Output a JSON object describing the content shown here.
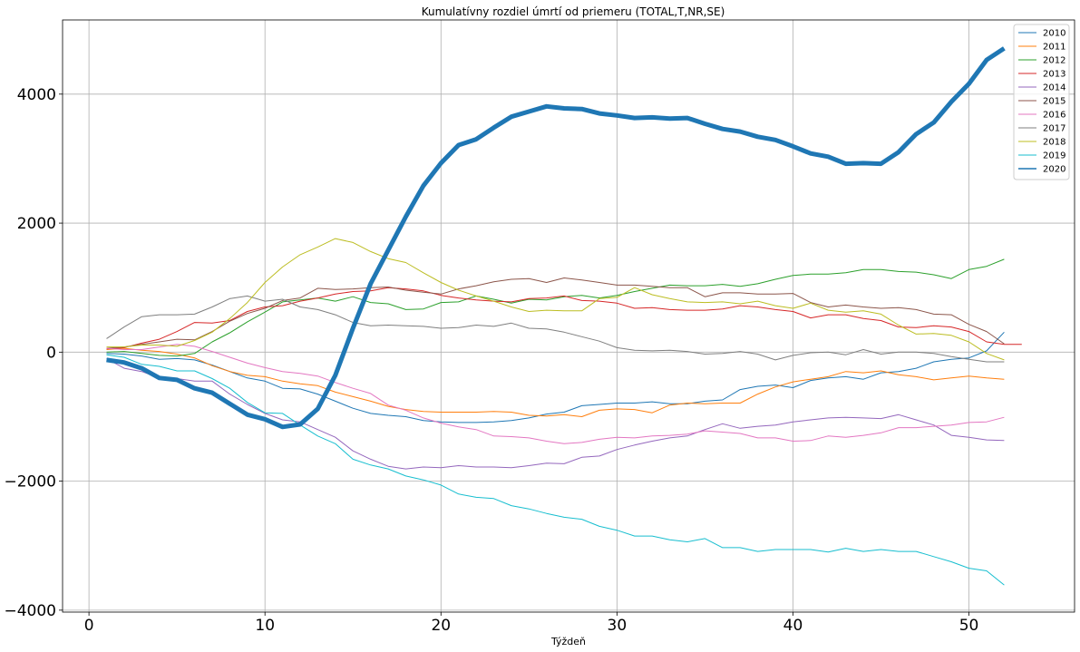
{
  "chart_data": {
    "type": "line",
    "title": "Kumulatívny rozdiel úmrtí od priemeru (TOTAL,T,NR,SE)",
    "xlabel": "Týždeň",
    "ylabel": "",
    "xlim": [
      -1.5,
      56
    ],
    "ylim": [
      -4030,
      5150
    ],
    "xticks": [
      0,
      10,
      20,
      30,
      40,
      50
    ],
    "yticks": [
      -4000,
      -2000,
      0,
      2000,
      4000
    ],
    "xtick_labels": [
      "0",
      "10",
      "20",
      "30",
      "40",
      "50"
    ],
    "ytick_labels": [
      "−4000",
      "−2000",
      "0",
      "2000",
      "4000"
    ],
    "grid": true,
    "legend_position": "top-right",
    "series": [
      {
        "name": "2010",
        "color": "#1f77b4",
        "width": 1,
        "x": [
          1,
          2,
          3,
          4,
          5,
          6,
          7,
          8,
          9,
          10,
          11,
          12,
          13,
          14,
          15,
          16,
          17,
          18,
          19,
          20,
          21,
          22,
          23,
          24,
          25,
          26,
          27,
          28,
          29,
          30,
          31,
          32,
          33,
          34,
          35,
          36,
          37,
          38,
          39,
          40,
          41,
          42,
          43,
          44,
          45,
          46,
          47,
          48,
          49,
          50,
          51,
          52
        ],
        "y": [
          -20,
          -30,
          -60,
          -110,
          -100,
          -120,
          -200,
          -300,
          -400,
          -450,
          -560,
          -570,
          -650,
          -760,
          -870,
          -950,
          -980,
          -1000,
          -1060,
          -1080,
          -1090,
          -1090,
          -1080,
          -1060,
          -1020,
          -960,
          -930,
          -830,
          -810,
          -790,
          -790,
          -770,
          -800,
          -800,
          -760,
          -740,
          -580,
          -530,
          -510,
          -550,
          -440,
          -400,
          -380,
          -420,
          -320,
          -300,
          -250,
          -150,
          -110,
          -90,
          20,
          310
        ]
      },
      {
        "name": "2011",
        "color": "#ff7f0e",
        "width": 1,
        "x": [
          1,
          2,
          3,
          4,
          5,
          6,
          7,
          8,
          9,
          10,
          11,
          12,
          13,
          14,
          15,
          16,
          17,
          18,
          19,
          20,
          21,
          22,
          23,
          24,
          25,
          26,
          27,
          28,
          29,
          30,
          31,
          32,
          33,
          34,
          35,
          36,
          37,
          38,
          39,
          40,
          41,
          42,
          43,
          44,
          45,
          46,
          47,
          48,
          49,
          50,
          51,
          52
        ],
        "y": [
          40,
          60,
          30,
          10,
          -30,
          -90,
          -210,
          -300,
          -360,
          -380,
          -450,
          -490,
          -520,
          -620,
          -690,
          -760,
          -840,
          -890,
          -920,
          -930,
          -930,
          -930,
          -920,
          -930,
          -980,
          -990,
          -970,
          -1000,
          -900,
          -880,
          -890,
          -940,
          -820,
          -790,
          -800,
          -790,
          -790,
          -650,
          -540,
          -460,
          -420,
          -380,
          -300,
          -320,
          -290,
          -350,
          -380,
          -430,
          -400,
          -370,
          -400,
          -420
        ]
      },
      {
        "name": "2012",
        "color": "#2ca02c",
        "width": 1,
        "x": [
          1,
          2,
          3,
          4,
          5,
          6,
          7,
          8,
          9,
          10,
          11,
          12,
          13,
          14,
          15,
          16,
          17,
          18,
          19,
          20,
          21,
          22,
          23,
          24,
          25,
          26,
          27,
          28,
          29,
          30,
          31,
          32,
          33,
          34,
          35,
          36,
          37,
          38,
          39,
          40,
          41,
          42,
          43,
          44,
          45,
          46,
          47,
          48,
          49,
          50,
          51,
          52
        ],
        "y": [
          0,
          10,
          -20,
          -50,
          -60,
          -20,
          160,
          300,
          470,
          620,
          780,
          810,
          840,
          790,
          860,
          770,
          750,
          660,
          670,
          770,
          780,
          870,
          820,
          760,
          820,
          810,
          860,
          880,
          840,
          880,
          940,
          990,
          1040,
          1030,
          1030,
          1050,
          1020,
          1060,
          1130,
          1190,
          1210,
          1210,
          1230,
          1280,
          1280,
          1250,
          1240,
          1200,
          1140,
          1280,
          1330,
          1440
        ]
      },
      {
        "name": "2013",
        "color": "#d62728",
        "width": 1,
        "x": [
          1,
          2,
          3,
          4,
          5,
          6,
          7,
          8,
          9,
          10,
          11,
          12,
          13,
          14,
          15,
          16,
          17,
          18,
          19,
          20,
          21,
          22,
          23,
          24,
          25,
          26,
          27,
          28,
          29,
          30,
          31,
          32,
          33,
          34,
          35,
          36,
          37,
          38,
          39,
          40,
          41,
          42,
          43,
          44,
          45,
          46,
          47,
          48,
          49,
          50,
          51,
          52,
          53
        ],
        "y": [
          50,
          70,
          140,
          200,
          320,
          460,
          450,
          490,
          630,
          700,
          720,
          790,
          840,
          900,
          940,
          950,
          1000,
          980,
          950,
          880,
          840,
          810,
          790,
          780,
          830,
          840,
          870,
          800,
          790,
          760,
          680,
          690,
          660,
          650,
          650,
          670,
          720,
          700,
          660,
          630,
          530,
          580,
          580,
          520,
          490,
          390,
          380,
          410,
          390,
          320,
          160,
          120,
          120
        ]
      },
      {
        "name": "2014",
        "color": "#9467bd",
        "width": 1,
        "x": [
          1,
          2,
          3,
          4,
          5,
          6,
          7,
          8,
          9,
          10,
          11,
          12,
          13,
          14,
          15,
          16,
          17,
          18,
          19,
          20,
          21,
          22,
          23,
          24,
          25,
          26,
          27,
          28,
          29,
          30,
          31,
          32,
          33,
          34,
          35,
          36,
          37,
          38,
          39,
          40,
          41,
          42,
          43,
          44,
          45,
          46,
          47,
          48,
          49,
          50,
          51,
          52
        ],
        "y": [
          -100,
          -250,
          -300,
          -400,
          -410,
          -450,
          -450,
          -650,
          -810,
          -950,
          -1050,
          -1080,
          -1200,
          -1320,
          -1530,
          -1660,
          -1770,
          -1810,
          -1780,
          -1790,
          -1760,
          -1780,
          -1780,
          -1790,
          -1760,
          -1720,
          -1730,
          -1630,
          -1610,
          -1510,
          -1440,
          -1380,
          -1330,
          -1300,
          -1200,
          -1110,
          -1180,
          -1150,
          -1130,
          -1080,
          -1050,
          -1020,
          -1010,
          -1020,
          -1030,
          -970,
          -1050,
          -1130,
          -1290,
          -1320,
          -1360,
          -1370
        ]
      },
      {
        "name": "2015",
        "color": "#8c564b",
        "width": 1,
        "x": [
          1,
          2,
          3,
          4,
          5,
          6,
          7,
          8,
          9,
          10,
          11,
          12,
          13,
          14,
          15,
          16,
          17,
          18,
          19,
          20,
          21,
          22,
          23,
          24,
          25,
          26,
          27,
          28,
          29,
          30,
          31,
          32,
          33,
          34,
          35,
          36,
          37,
          38,
          39,
          40,
          41,
          42,
          43,
          44,
          45,
          46,
          47,
          48,
          49,
          50,
          51,
          52
        ],
        "y": [
          60,
          80,
          120,
          160,
          200,
          190,
          320,
          480,
          600,
          680,
          800,
          840,
          990,
          970,
          980,
          1000,
          1010,
          960,
          930,
          900,
          980,
          1030,
          1090,
          1130,
          1140,
          1080,
          1150,
          1120,
          1080,
          1040,
          1040,
          1020,
          1000,
          1000,
          860,
          920,
          920,
          900,
          900,
          910,
          770,
          700,
          730,
          700,
          680,
          690,
          660,
          590,
          580,
          430,
          320,
          130
        ]
      },
      {
        "name": "2016",
        "color": "#e377c2",
        "width": 1,
        "x": [
          1,
          2,
          3,
          4,
          5,
          6,
          7,
          8,
          9,
          10,
          11,
          12,
          13,
          14,
          15,
          16,
          17,
          18,
          19,
          20,
          21,
          22,
          23,
          24,
          25,
          26,
          27,
          28,
          29,
          30,
          31,
          32,
          33,
          34,
          35,
          36,
          37,
          38,
          39,
          40,
          41,
          42,
          43,
          44,
          45,
          46,
          47,
          48,
          49,
          50,
          51,
          52
        ],
        "y": [
          60,
          40,
          40,
          80,
          120,
          90,
          10,
          -80,
          -170,
          -240,
          -300,
          -330,
          -370,
          -470,
          -560,
          -640,
          -820,
          -900,
          -1020,
          -1100,
          -1160,
          -1200,
          -1300,
          -1310,
          -1330,
          -1380,
          -1420,
          -1400,
          -1350,
          -1320,
          -1330,
          -1300,
          -1290,
          -1270,
          -1220,
          -1240,
          -1260,
          -1330,
          -1330,
          -1380,
          -1370,
          -1300,
          -1320,
          -1290,
          -1250,
          -1170,
          -1170,
          -1150,
          -1130,
          -1090,
          -1080,
          -1010
        ]
      },
      {
        "name": "2017",
        "color": "#7f7f7f",
        "width": 1,
        "x": [
          1,
          2,
          3,
          4,
          5,
          6,
          7,
          8,
          9,
          10,
          11,
          12,
          13,
          14,
          15,
          16,
          17,
          18,
          19,
          20,
          21,
          22,
          23,
          24,
          25,
          26,
          27,
          28,
          29,
          30,
          31,
          32,
          33,
          34,
          35,
          36,
          37,
          38,
          39,
          40,
          41,
          42,
          43,
          44,
          45,
          46,
          47,
          48,
          49,
          50,
          51,
          52
        ],
        "y": [
          210,
          390,
          550,
          580,
          580,
          590,
          700,
          830,
          870,
          790,
          820,
          700,
          660,
          580,
          460,
          410,
          420,
          410,
          400,
          370,
          380,
          420,
          400,
          450,
          370,
          360,
          310,
          240,
          170,
          70,
          30,
          20,
          30,
          10,
          -30,
          -20,
          10,
          -30,
          -120,
          -50,
          -10,
          0,
          -40,
          40,
          -30,
          0,
          0,
          -20,
          -70,
          -110,
          -150,
          -150
        ]
      },
      {
        "name": "2018",
        "color": "#bcbd22",
        "width": 1,
        "x": [
          1,
          2,
          3,
          4,
          5,
          6,
          7,
          8,
          9,
          10,
          11,
          12,
          13,
          14,
          15,
          16,
          17,
          18,
          19,
          20,
          21,
          22,
          23,
          24,
          25,
          26,
          27,
          28,
          29,
          30,
          31,
          32,
          33,
          34,
          35,
          36,
          37,
          38,
          39,
          40,
          41,
          42,
          43,
          44,
          45,
          46,
          47,
          48,
          49,
          50,
          51,
          52
        ],
        "y": [
          80,
          80,
          110,
          110,
          90,
          180,
          310,
          520,
          770,
          1080,
          1320,
          1510,
          1630,
          1760,
          1700,
          1560,
          1450,
          1390,
          1230,
          1080,
          960,
          870,
          790,
          700,
          630,
          650,
          640,
          640,
          830,
          850,
          1000,
          890,
          830,
          780,
          770,
          780,
          750,
          790,
          720,
          680,
          760,
          650,
          620,
          640,
          590,
          420,
          280,
          290,
          260,
          160,
          -20,
          -120
        ]
      },
      {
        "name": "2019",
        "color": "#17becf",
        "width": 1,
        "x": [
          1,
          2,
          3,
          4,
          5,
          6,
          7,
          8,
          9,
          10,
          11,
          12,
          13,
          14,
          15,
          16,
          17,
          18,
          19,
          20,
          21,
          22,
          23,
          24,
          25,
          26,
          27,
          28,
          29,
          30,
          31,
          32,
          33,
          34,
          35,
          36,
          37,
          38,
          39,
          40,
          41,
          42,
          43,
          44,
          45,
          46,
          47,
          48,
          49,
          50,
          51,
          52
        ],
        "y": [
          -40,
          -80,
          -190,
          -220,
          -290,
          -290,
          -410,
          -560,
          -780,
          -940,
          -950,
          -1130,
          -1300,
          -1420,
          -1660,
          -1750,
          -1810,
          -1920,
          -1980,
          -2060,
          -2200,
          -2250,
          -2270,
          -2380,
          -2430,
          -2500,
          -2560,
          -2590,
          -2700,
          -2760,
          -2850,
          -2850,
          -2910,
          -2940,
          -2890,
          -3030,
          -3030,
          -3090,
          -3060,
          -3060,
          -3060,
          -3100,
          -3040,
          -3090,
          -3060,
          -3090,
          -3090,
          -3170,
          -3250,
          -3350,
          -3390,
          -3610
        ]
      },
      {
        "name": "2020",
        "color": "#1f77b4",
        "width": 5,
        "x": [
          1,
          2,
          3,
          4,
          5,
          6,
          7,
          8,
          9,
          10,
          11,
          12,
          13,
          14,
          15,
          16,
          17,
          18,
          19,
          20,
          21,
          22,
          23,
          24,
          25,
          26,
          27,
          28,
          29,
          30,
          31,
          32,
          33,
          34,
          35,
          36,
          37,
          38,
          39,
          40,
          41,
          42,
          43,
          44,
          45,
          46,
          47,
          48,
          49,
          50,
          51,
          52
        ],
        "y": [
          -120,
          -160,
          -250,
          -400,
          -430,
          -560,
          -630,
          -800,
          -970,
          -1040,
          -1160,
          -1120,
          -880,
          -360,
          370,
          1060,
          1580,
          2100,
          2580,
          2930,
          3210,
          3300,
          3480,
          3650,
          3730,
          3810,
          3780,
          3770,
          3700,
          3670,
          3630,
          3640,
          3620,
          3630,
          3540,
          3460,
          3420,
          3340,
          3290,
          3190,
          3080,
          3030,
          2920,
          2930,
          2920,
          3100,
          3380,
          3560,
          3880,
          4160,
          4530,
          4710
        ]
      }
    ]
  }
}
